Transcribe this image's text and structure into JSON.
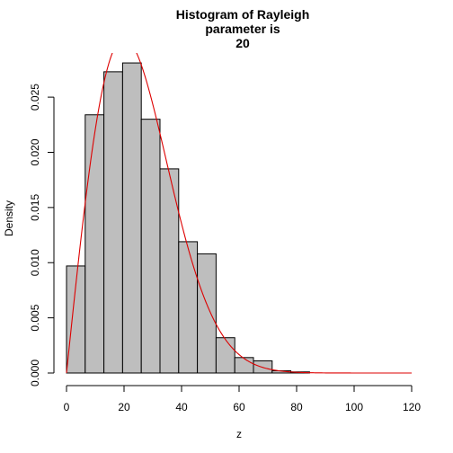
{
  "chart_data": {
    "type": "histogram",
    "title_lines": [
      "Histogram of Rayleigh",
      "parameter is",
      "20"
    ],
    "xlabel": "z",
    "ylabel": "Density",
    "xlim": [
      0,
      120
    ],
    "ylim": [
      0,
      0.029
    ],
    "x_ticks": [
      0,
      20,
      40,
      60,
      80,
      100,
      120
    ],
    "y_ticks": [
      0.0,
      0.005,
      0.01,
      0.015,
      0.02,
      0.025
    ],
    "x_tick_labels": [
      "0",
      "20",
      "40",
      "60",
      "80",
      "100",
      "120"
    ],
    "y_tick_labels": [
      "0.000",
      "0.005",
      "0.010",
      "0.015",
      "0.020",
      "0.025"
    ],
    "bins": [
      {
        "x0": 0,
        "x1": 6.5,
        "density": 0.0097
      },
      {
        "x0": 6.5,
        "x1": 13,
        "density": 0.0234
      },
      {
        "x0": 13,
        "x1": 19.5,
        "density": 0.0273
      },
      {
        "x0": 19.5,
        "x1": 26,
        "density": 0.0281
      },
      {
        "x0": 26,
        "x1": 32.5,
        "density": 0.023
      },
      {
        "x0": 32.5,
        "x1": 39,
        "density": 0.0185
      },
      {
        "x0": 39,
        "x1": 45.5,
        "density": 0.0119
      },
      {
        "x0": 45.5,
        "x1": 52,
        "density": 0.0108
      },
      {
        "x0": 52,
        "x1": 58.5,
        "density": 0.0032
      },
      {
        "x0": 58.5,
        "x1": 65,
        "density": 0.0014
      },
      {
        "x0": 65,
        "x1": 71.5,
        "density": 0.0011
      },
      {
        "x0": 71.5,
        "x1": 78,
        "density": 0.0002
      },
      {
        "x0": 78,
        "x1": 84.5,
        "density": 0.0001
      }
    ],
    "curve": {
      "type": "rayleigh_density",
      "sigma": 20,
      "x_range": [
        0,
        120
      ],
      "color": "#dd0000"
    },
    "bar_fill": "#bebebe",
    "bar_stroke": "#000000"
  }
}
